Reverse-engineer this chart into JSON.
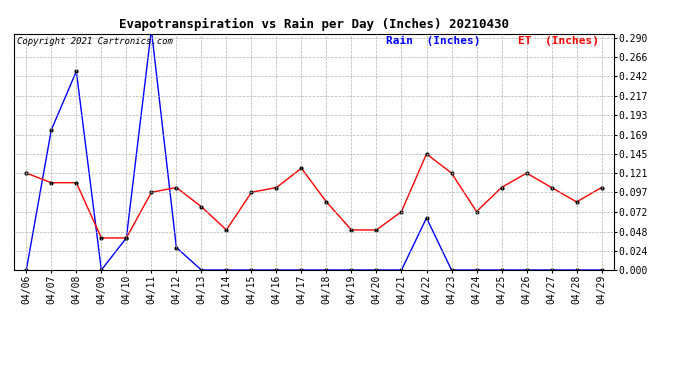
{
  "title": "Evapotranspiration vs Rain per Day (Inches) 20210430",
  "copyright": "Copyright 2021 Cartronics.com",
  "x_labels": [
    "04/06",
    "04/07",
    "04/08",
    "04/09",
    "04/10",
    "04/11",
    "04/12",
    "04/13",
    "04/14",
    "04/15",
    "04/16",
    "04/17",
    "04/18",
    "04/19",
    "04/20",
    "04/21",
    "04/22",
    "04/23",
    "04/24",
    "04/25",
    "04/26",
    "04/27",
    "04/28",
    "04/29"
  ],
  "rain_data": [
    0.0,
    0.175,
    0.248,
    0.0,
    0.04,
    0.3,
    0.028,
    0.0,
    0.0,
    0.0,
    0.0,
    0.0,
    0.0,
    0.0,
    0.0,
    0.0,
    0.065,
    0.0,
    0.0,
    0.0,
    0.0,
    0.0,
    0.0,
    0.0
  ],
  "et_data": [
    0.121,
    0.109,
    0.109,
    0.04,
    0.04,
    0.097,
    0.103,
    0.079,
    0.05,
    0.097,
    0.103,
    0.127,
    0.085,
    0.05,
    0.05,
    0.073,
    0.145,
    0.121,
    0.073,
    0.103,
    0.121,
    0.103,
    0.085,
    0.103
  ],
  "rain_color": "#0000FF",
  "et_color": "#FF0000",
  "background_color": "#FFFFFF",
  "grid_color": "#AAAAAA",
  "y_ticks": [
    0.0,
    0.024,
    0.048,
    0.072,
    0.097,
    0.121,
    0.145,
    0.169,
    0.193,
    0.217,
    0.242,
    0.266,
    0.29
  ],
  "ylim": [
    0.0,
    0.295
  ],
  "legend_rain": "Rain  (Inches)",
  "legend_et": "ET  (Inches)",
  "marker": ".",
  "marker_size": 4,
  "title_fontsize": 9,
  "tick_fontsize": 7,
  "copyright_fontsize": 6.5,
  "legend_fontsize": 8,
  "linewidth": 1.0
}
